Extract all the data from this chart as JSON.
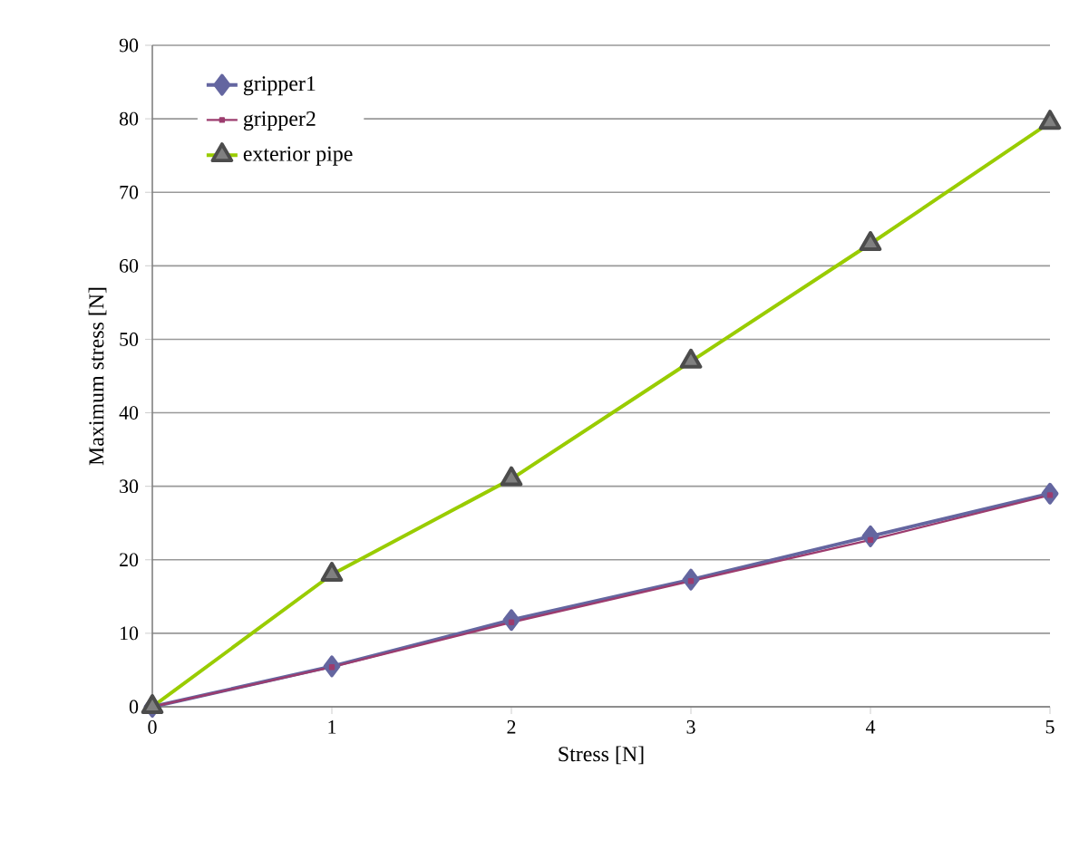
{
  "chart_data": {
    "type": "line",
    "xlabel": "Stress [N]",
    "ylabel": "Maximum stress [N]",
    "x": [
      0,
      1,
      2,
      3,
      4,
      5
    ],
    "series": [
      {
        "name": "gripper1",
        "color": "#6466a0",
        "marker": "diamond",
        "values": [
          0,
          5.5,
          11.8,
          17.3,
          23.2,
          29
        ]
      },
      {
        "name": "gripper2",
        "color": "#9c3c6e",
        "marker": "square",
        "values": [
          0,
          5.4,
          11.5,
          17.1,
          22.7,
          28.8
        ]
      },
      {
        "name": "exterior pipe",
        "color": "#99cc00",
        "marker": "triangle",
        "values": [
          0,
          18,
          31,
          47,
          63,
          79.5
        ]
      }
    ],
    "xlim": [
      0,
      5
    ],
    "xticks": [
      0,
      1,
      2,
      3,
      4,
      5
    ],
    "ylim": [
      0,
      90
    ],
    "yticks": [
      0,
      10,
      20,
      30,
      40,
      50,
      60,
      70,
      80,
      90
    ],
    "grid": "y",
    "legend": "top left"
  }
}
